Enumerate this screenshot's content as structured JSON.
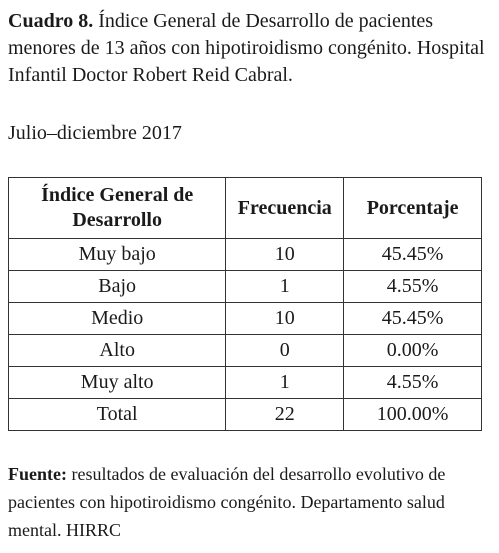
{
  "caption": {
    "label": "Cuadro 8.",
    "text": " Índice General de Desarrollo de pacientes menores de 13 años con hipotiroidismo congénito. Hospital Infantil Doctor Robert Reid Cabral."
  },
  "period": "Julio–diciembre 2017",
  "table": {
    "headers": [
      "Índice General de Desarrollo",
      "Frecuencia",
      "Porcentaje"
    ],
    "rows": [
      [
        "Muy bajo",
        "10",
        "45.45%"
      ],
      [
        "Bajo",
        "1",
        "4.55%"
      ],
      [
        "Medio",
        "10",
        "45.45%"
      ],
      [
        "Alto",
        "0",
        "0.00%"
      ],
      [
        "Muy alto",
        "1",
        "4.55%"
      ],
      [
        "Total",
        "22",
        "100.00%"
      ]
    ]
  },
  "source": {
    "label": "Fuente:",
    "text": " resultados de evaluación del desarrollo evolutivo de pacientes con hipotiroidismo congénito. Departamento salud mental. HIRRC"
  }
}
